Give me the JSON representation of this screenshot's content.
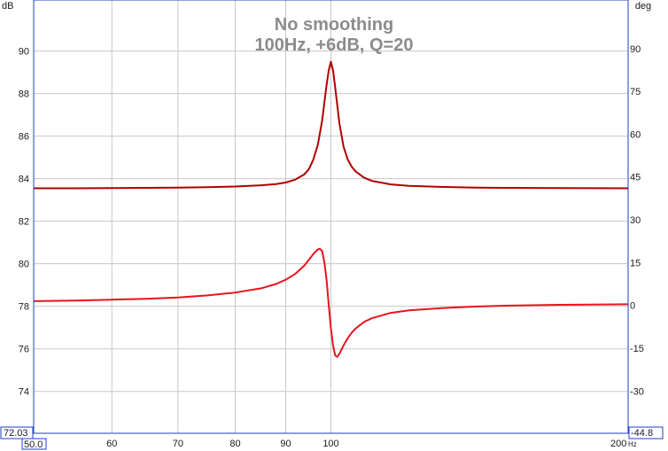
{
  "chart_data": {
    "type": "line",
    "title": "No smoothing",
    "subtitle": "100Hz, +6dB, Q=20",
    "x_unit": "Hz",
    "left_unit": "dB",
    "right_unit": "deg",
    "x_scale": "log",
    "xlim": [
      50,
      200
    ],
    "xlim_labels": [
      "50.0",
      "200"
    ],
    "x_ticks": [
      60,
      70,
      80,
      90,
      100
    ],
    "ylim_left": [
      72.03,
      92.4
    ],
    "ylim_left_label": "72.03",
    "y_ticks_left": [
      74,
      76,
      78,
      80,
      82,
      84,
      86,
      88,
      90
    ],
    "ylim_right": [
      -44.8,
      107
    ],
    "ylim_right_label": "-44.8",
    "y_ticks_right": [
      -30,
      -15,
      0,
      15,
      30,
      45,
      60,
      75,
      90
    ],
    "grid": true,
    "colors": {
      "magnitude": "#b00000",
      "phase": "#e8141e",
      "grid": "#c8c8c8",
      "axis_box": "#1e3cc8"
    },
    "series": [
      {
        "axis": "left",
        "x": [
          50,
          55,
          60,
          65,
          70,
          75,
          80,
          85,
          88,
          90,
          92,
          94,
          95,
          96,
          97,
          98,
          99,
          99.5,
          100,
          100.5,
          101,
          102,
          103,
          104,
          105,
          106,
          108,
          110,
          115,
          120,
          130,
          140,
          150,
          170,
          200
        ],
        "values": [
          83.55,
          83.55,
          83.56,
          83.57,
          83.58,
          83.6,
          83.63,
          83.69,
          83.75,
          83.82,
          83.95,
          84.2,
          84.45,
          84.9,
          85.6,
          86.75,
          88.4,
          89.1,
          89.5,
          89.1,
          88.3,
          86.6,
          85.5,
          84.9,
          84.55,
          84.33,
          84.05,
          83.9,
          83.73,
          83.66,
          83.61,
          83.58,
          83.57,
          83.56,
          83.55
        ]
      },
      {
        "axis": "right",
        "x": [
          50,
          55,
          60,
          65,
          70,
          75,
          80,
          85,
          88,
          90,
          92,
          94,
          95,
          96,
          97,
          97.5,
          98,
          98.5,
          99,
          99.5,
          100,
          100.5,
          101,
          101.5,
          102,
          103,
          104,
          105,
          106,
          108,
          110,
          115,
          120,
          130,
          140,
          150,
          170,
          200
        ],
        "values": [
          1.5,
          1.7,
          2.0,
          2.3,
          2.8,
          3.5,
          4.5,
          6.0,
          7.5,
          9.0,
          11.0,
          14.0,
          16.0,
          18.0,
          19.6,
          19.8,
          19.0,
          15.0,
          9.0,
          0.0,
          -8.0,
          -14.0,
          -17.5,
          -18.0,
          -17.0,
          -14.0,
          -11.5,
          -9.5,
          -8.0,
          -5.8,
          -4.5,
          -2.6,
          -1.7,
          -0.9,
          -0.4,
          -0.1,
          0.2,
          0.4
        ]
      }
    ]
  }
}
